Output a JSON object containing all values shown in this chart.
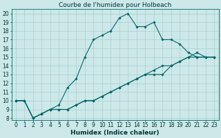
{
  "title": "Courbe de l'humidex pour Holbeach",
  "xlabel": "Humidex (Indice chaleur)",
  "ylabel": "",
  "bg_color": "#cce8e8",
  "grid_color": "#aacece",
  "line_color": "#006666",
  "xlim": [
    -0.5,
    23.5
  ],
  "ylim": [
    7.8,
    20.5
  ],
  "xticks": [
    0,
    1,
    2,
    3,
    4,
    5,
    6,
    7,
    8,
    9,
    10,
    11,
    12,
    13,
    14,
    15,
    16,
    17,
    18,
    19,
    20,
    21,
    22,
    23
  ],
  "yticks": [
    8,
    9,
    10,
    11,
    12,
    13,
    14,
    15,
    16,
    17,
    18,
    19,
    20
  ],
  "line1_x": [
    0,
    1,
    2,
    3,
    4,
    5,
    6,
    7,
    8,
    9,
    10,
    11,
    12,
    13,
    14,
    15,
    16,
    17,
    18,
    19,
    20,
    21,
    22,
    23
  ],
  "line1_y": [
    10,
    10,
    8,
    8.5,
    9,
    9.5,
    11.5,
    12.5,
    15,
    17,
    17.5,
    18,
    19.5,
    20,
    18.5,
    18.5,
    19,
    17,
    17,
    16.5,
    15.5,
    15,
    15,
    15
  ],
  "line2_x": [
    0,
    1,
    2,
    3,
    4,
    5,
    6,
    7,
    8,
    9,
    10,
    11,
    12,
    13,
    14,
    15,
    16,
    17,
    18,
    19,
    20,
    21,
    22,
    23
  ],
  "line2_y": [
    10,
    10,
    8,
    8.5,
    9,
    9,
    9,
    9.5,
    10,
    10,
    10.5,
    11,
    11.5,
    12,
    12.5,
    13,
    13,
    13,
    14,
    14.5,
    15,
    15.5,
    15,
    15
  ],
  "line3_x": [
    0,
    1,
    2,
    3,
    4,
    5,
    6,
    7,
    8,
    9,
    10,
    11,
    12,
    13,
    14,
    15,
    16,
    17,
    18,
    19,
    20,
    21,
    22,
    23
  ],
  "line3_y": [
    10,
    10,
    8,
    8.5,
    9,
    9,
    9,
    9.5,
    10,
    10,
    10.5,
    11,
    11.5,
    12,
    12.5,
    13,
    13.5,
    14,
    14,
    14.5,
    15,
    15,
    15,
    15
  ],
  "marker_style": "D",
  "marker_size": 1.8,
  "line_width": 0.8,
  "tick_fontsize": 5.5,
  "xlabel_fontsize": 6.5,
  "title_fontsize": 6.5
}
